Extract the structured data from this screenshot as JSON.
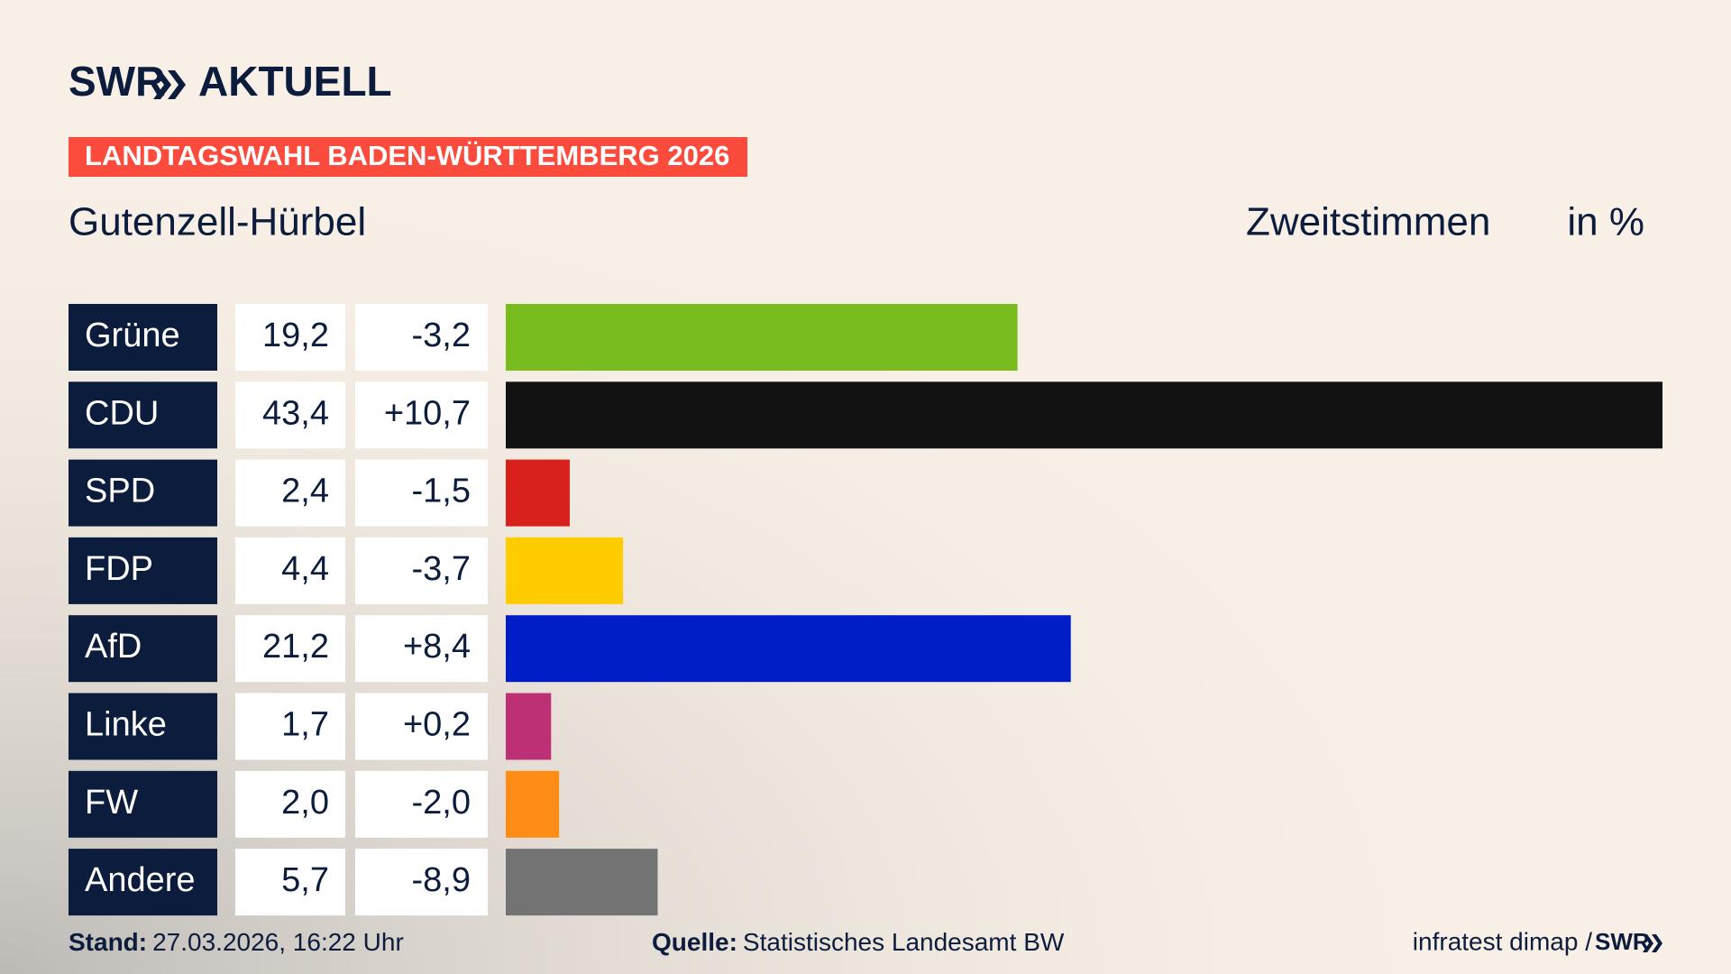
{
  "logo": {
    "brand": "SWR",
    "name": "AKTUELL"
  },
  "chart_data": {
    "type": "bar",
    "kicker": "LANDTAGSWAHL BADEN-WÜRTTEMBERG 2026",
    "title": "Gutenzell-Hürbel",
    "measure": "Zweitstimmen",
    "unit": "in %",
    "categories": [
      "Grüne",
      "CDU",
      "SPD",
      "FDP",
      "AfD",
      "Linke",
      "FW",
      "Andere"
    ],
    "values": [
      19.2,
      43.4,
      2.4,
      4.4,
      21.2,
      1.7,
      2.0,
      5.7
    ],
    "value_labels": [
      "19,2",
      "43,4",
      "2,4",
      "4,4",
      "21,2",
      "1,7",
      "2,0",
      "5,7"
    ],
    "changes": [
      -3.2,
      10.7,
      -1.5,
      -3.7,
      8.4,
      0.2,
      -2.0,
      -8.9
    ],
    "change_labels": [
      "-3,2",
      "+10,7",
      "-1,5",
      "-3,7",
      "+8,4",
      "+0,2",
      "-2,0",
      "-8,9"
    ],
    "colors": [
      "#78bc1e",
      "#121212",
      "#d8201c",
      "#ffcc00",
      "#001ec8",
      "#be3075",
      "#ff8c14",
      "#737373"
    ]
  },
  "footer": {
    "stand_label": "Stand:",
    "stand": "27.03.2026, 16:22 Uhr",
    "source_label": "Quelle:",
    "source": "Statistisches Landesamt BW",
    "credit": "infratest dimap /",
    "credit_brand": "SWR"
  }
}
